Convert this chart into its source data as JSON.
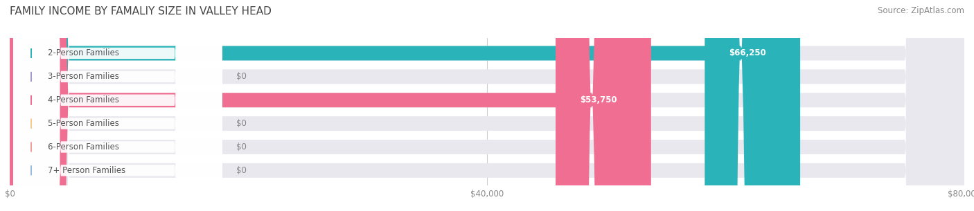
{
  "title": "FAMILY INCOME BY FAMALIY SIZE IN VALLEY HEAD",
  "source": "Source: ZipAtlas.com",
  "categories": [
    "2-Person Families",
    "3-Person Families",
    "4-Person Families",
    "5-Person Families",
    "6-Person Families",
    "7+ Person Families"
  ],
  "values": [
    66250,
    0,
    53750,
    0,
    0,
    0
  ],
  "bar_colors": [
    "#2ab3b8",
    "#a09ccc",
    "#f06e92",
    "#f5c98a",
    "#f0a099",
    "#99bbdd"
  ],
  "label_colors": [
    "#2ab3b8",
    "#a09ccc",
    "#f06e92",
    "#f5c98a",
    "#f0a099",
    "#99bbdd"
  ],
  "value_labels": [
    "$66,250",
    "$0",
    "$53,750",
    "$0",
    "$0",
    "$0"
  ],
  "xlim": [
    0,
    80000
  ],
  "xtick_values": [
    0,
    40000,
    80000
  ],
  "xtick_labels": [
    "$0",
    "$40,000",
    "$80,000"
  ],
  "background_color": "#ffffff",
  "bar_bg_color": "#e8e8ee",
  "title_fontsize": 11,
  "source_fontsize": 8.5,
  "label_fontsize": 8.5,
  "value_fontsize": 8.5
}
